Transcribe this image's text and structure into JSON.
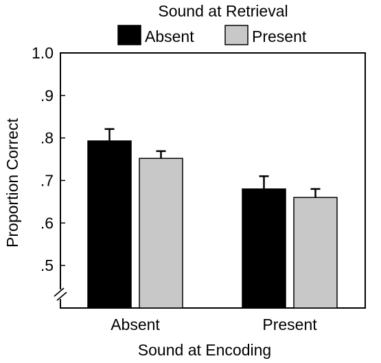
{
  "chart_data": {
    "type": "bar",
    "title": "",
    "legend": {
      "title": "Sound at Retrieval",
      "placement": "top-center",
      "entries": [
        "Absent",
        "Present"
      ]
    },
    "xlabel": "Sound at Encoding",
    "ylabel": "Proportion Correct",
    "categories": [
      "Absent",
      "Present"
    ],
    "series": [
      {
        "name": "Absent",
        "color": "#000000",
        "values": [
          0.793,
          0.68
        ],
        "errors": [
          0.028,
          0.03
        ]
      },
      {
        "name": "Present",
        "color": "#c8c8c8",
        "values": [
          0.752,
          0.66
        ],
        "errors": [
          0.017,
          0.02
        ]
      }
    ],
    "ylim": [
      0.4,
      1.0
    ],
    "yticks": [
      0.5,
      0.6,
      0.7,
      0.8,
      0.9,
      1.0
    ],
    "ytick_labels": [
      ".5",
      ".6",
      ".7",
      ".8",
      ".9",
      "1.0"
    ],
    "axis_break": true,
    "grid": false
  }
}
